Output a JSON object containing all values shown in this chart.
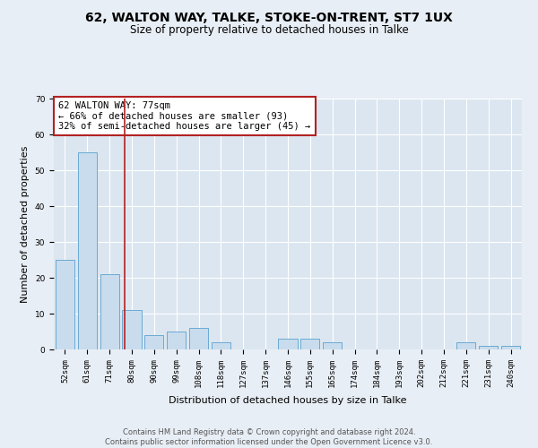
{
  "title": "62, WALTON WAY, TALKE, STOKE-ON-TRENT, ST7 1UX",
  "subtitle": "Size of property relative to detached houses in Talke",
  "xlabel": "Distribution of detached houses by size in Talke",
  "ylabel": "Number of detached properties",
  "categories": [
    "52sqm",
    "61sqm",
    "71sqm",
    "80sqm",
    "90sqm",
    "99sqm",
    "108sqm",
    "118sqm",
    "127sqm",
    "137sqm",
    "146sqm",
    "155sqm",
    "165sqm",
    "174sqm",
    "184sqm",
    "193sqm",
    "202sqm",
    "212sqm",
    "221sqm",
    "231sqm",
    "240sqm"
  ],
  "values": [
    25,
    55,
    21,
    11,
    4,
    5,
    6,
    2,
    0,
    0,
    3,
    3,
    2,
    0,
    0,
    0,
    0,
    0,
    2,
    1,
    1
  ],
  "bar_color": "#c9dced",
  "bar_edge_color": "#6aaad4",
  "vline_color": "#b22222",
  "ylim": [
    0,
    70
  ],
  "yticks": [
    0,
    10,
    20,
    30,
    40,
    50,
    60,
    70
  ],
  "annotation_title": "62 WALTON WAY: 77sqm",
  "annotation_line1": "← 66% of detached houses are smaller (93)",
  "annotation_line2": "32% of semi-detached houses are larger (45) →",
  "annotation_box_color": "#b22222",
  "footer1": "Contains HM Land Registry data © Crown copyright and database right 2024.",
  "footer2": "Contains public sector information licensed under the Open Government Licence v3.0.",
  "background_color": "#e8eef5",
  "plot_bg_color": "#dce6f0",
  "grid_color": "#ffffff",
  "title_fontsize": 10,
  "subtitle_fontsize": 8.5,
  "axis_label_fontsize": 8,
  "tick_fontsize": 6.5,
  "annotation_fontsize": 7.5,
  "footer_fontsize": 6
}
